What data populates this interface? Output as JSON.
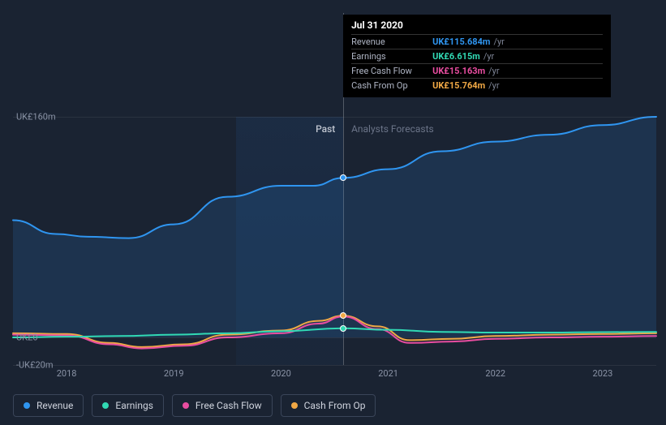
{
  "chart": {
    "type": "line",
    "background_color": "#1a2332",
    "tooltip": {
      "date": "Jul 31 2020",
      "unit": "/yr",
      "rows": [
        {
          "name": "Revenue",
          "value": "UK£115.684m",
          "color": "#2f95f0"
        },
        {
          "name": "Earnings",
          "value": "UK£6.615m",
          "color": "#31d9b4"
        },
        {
          "name": "Free Cash Flow",
          "value": "UK£15.163m",
          "color": "#e84da0"
        },
        {
          "name": "Cash From Op",
          "value": "UK£15.764m",
          "color": "#f0a845"
        }
      ]
    },
    "y_axis": {
      "ticks": [
        {
          "v": 160,
          "label": "UK£160m"
        },
        {
          "v": 0,
          "label": "UK£0"
        },
        {
          "v": -20,
          "label": "-UK£20m"
        }
      ],
      "min": -20,
      "max": 160
    },
    "x_axis": {
      "ticks": [
        2018,
        2019,
        2020,
        2021,
        2022,
        2023
      ],
      "min": 2017.5,
      "max": 2023.5,
      "today": 2020.58,
      "past_band_start": 2019.58
    },
    "labels": {
      "past": "Past",
      "forecast": "Analysts Forecasts"
    },
    "series": [
      {
        "name": "Revenue",
        "color": "#2f95f0",
        "width": 2,
        "fill_opacity": 0.15,
        "points": [
          [
            2017.5,
            85
          ],
          [
            2017.9,
            75
          ],
          [
            2018.2,
            73
          ],
          [
            2018.58,
            72
          ],
          [
            2019,
            82
          ],
          [
            2019.5,
            102
          ],
          [
            2020,
            110
          ],
          [
            2020.3,
            110
          ],
          [
            2020.58,
            115.684
          ],
          [
            2021,
            122
          ],
          [
            2021.5,
            135
          ],
          [
            2022,
            142
          ],
          [
            2022.5,
            147
          ],
          [
            2023,
            154
          ],
          [
            2023.5,
            160
          ]
        ]
      },
      {
        "name": "Cash From Op",
        "color": "#f0a845",
        "width": 2,
        "points": [
          [
            2017.5,
            3
          ],
          [
            2018,
            2.5
          ],
          [
            2018.4,
            -4
          ],
          [
            2018.7,
            -7
          ],
          [
            2019.1,
            -5
          ],
          [
            2019.5,
            2
          ],
          [
            2020,
            5
          ],
          [
            2020.35,
            12
          ],
          [
            2020.58,
            15.764
          ],
          [
            2020.9,
            8
          ],
          [
            2021.2,
            -2
          ],
          [
            2021.6,
            -1
          ],
          [
            2022,
            1
          ],
          [
            2022.5,
            2
          ],
          [
            2023,
            2.5
          ],
          [
            2023.5,
            3
          ]
        ]
      },
      {
        "name": "Free Cash Flow",
        "color": "#e84da0",
        "width": 2,
        "points": [
          [
            2017.5,
            2
          ],
          [
            2018,
            1.5
          ],
          [
            2018.4,
            -5
          ],
          [
            2018.7,
            -8
          ],
          [
            2019.1,
            -6
          ],
          [
            2019.5,
            0
          ],
          [
            2020,
            3
          ],
          [
            2020.35,
            10
          ],
          [
            2020.58,
            15.163
          ],
          [
            2020.9,
            6
          ],
          [
            2021.2,
            -4
          ],
          [
            2021.6,
            -3
          ],
          [
            2022,
            -1
          ],
          [
            2022.5,
            0
          ],
          [
            2023,
            0.5
          ],
          [
            2023.5,
            1
          ]
        ]
      },
      {
        "name": "Earnings",
        "color": "#31d9b4",
        "width": 2,
        "points": [
          [
            2017.5,
            0
          ],
          [
            2018,
            0.5
          ],
          [
            2018.5,
            1
          ],
          [
            2019,
            2
          ],
          [
            2019.5,
            3
          ],
          [
            2020,
            4.5
          ],
          [
            2020.58,
            6.615
          ],
          [
            2021,
            5.5
          ],
          [
            2021.5,
            4
          ],
          [
            2022,
            3.5
          ],
          [
            2022.5,
            3.5
          ],
          [
            2023,
            3.8
          ],
          [
            2023.5,
            4
          ]
        ]
      }
    ],
    "legend": [
      {
        "name": "Revenue",
        "color": "#2f95f0"
      },
      {
        "name": "Earnings",
        "color": "#31d9b4"
      },
      {
        "name": "Free Cash Flow",
        "color": "#e84da0"
      },
      {
        "name": "Cash From Op",
        "color": "#f0a845"
      }
    ],
    "markers_at_today": [
      {
        "series": "Revenue",
        "color": "#2f95f0"
      },
      {
        "series": "Earnings",
        "color": "#31d9b4"
      },
      {
        "series": "Cash From Op",
        "color": "#f0a845"
      }
    ]
  }
}
